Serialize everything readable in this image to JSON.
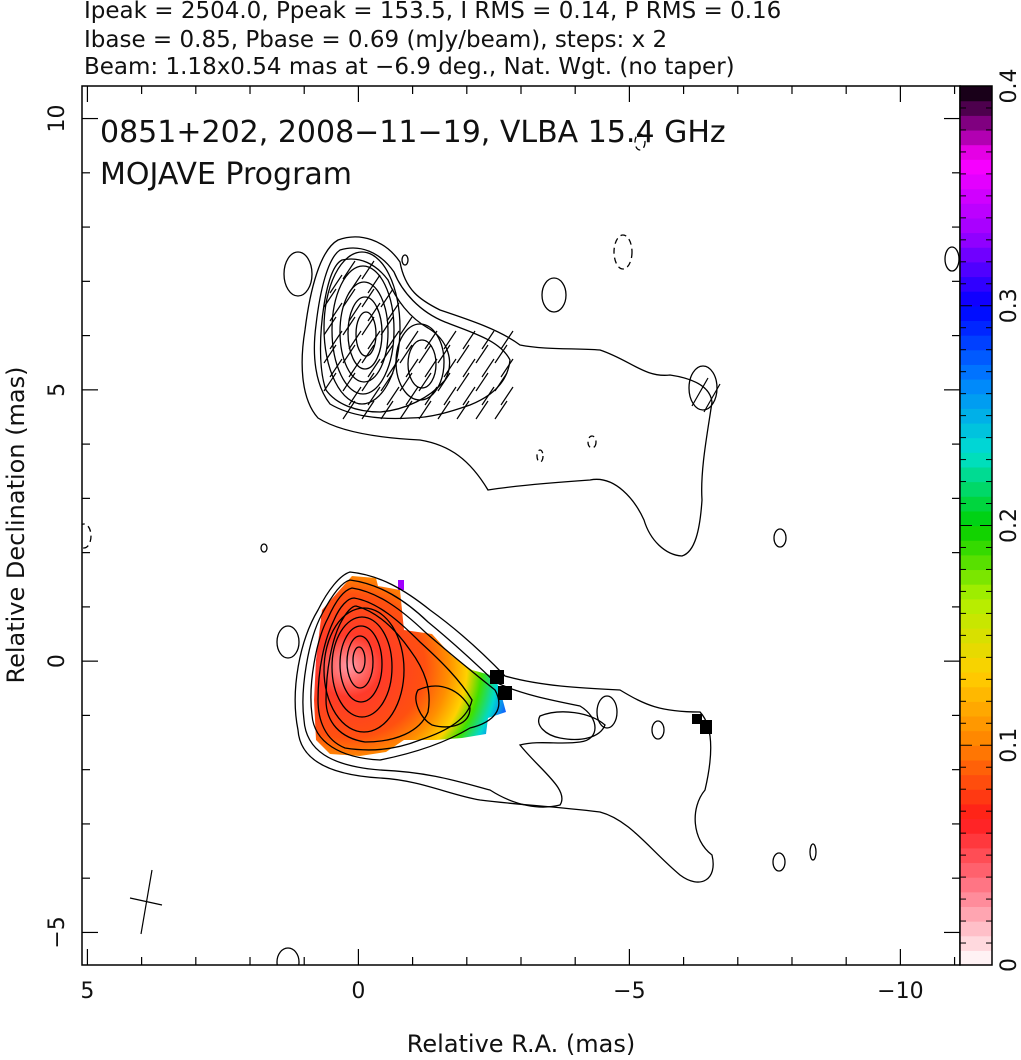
{
  "header": {
    "line1": "Ipeak = 2504.0, Ppeak = 153.5, I RMS = 0.14, P RMS = 0.16",
    "line2": "Ibase = 0.85, Pbase = 0.69 (mJy/beam), steps: x 2",
    "line3": "Beam: 1.18x0.54 mas at −6.9 deg., Nat. Wgt. (no taper)"
  },
  "chart_data": {
    "type": "heatmap",
    "title_lines": [
      "0851+202, 2008−11−19, VLBA 15.4 GHz",
      "MOJAVE Program"
    ],
    "xlabel": "Relative R.A. (mas)",
    "ylabel": "Relative Declination (mas)",
    "xlim": [
      5.1,
      -11.1
    ],
    "ylim": [
      -5.6,
      10.6
    ],
    "x_ticks": [
      5,
      0,
      -5,
      -10
    ],
    "x_tick_labels": [
      "5",
      "0",
      "−5",
      "−10"
    ],
    "y_ticks": [
      -5,
      0,
      5,
      10
    ],
    "y_tick_labels": [
      "−5",
      "0",
      "5",
      "10"
    ],
    "colorbar": {
      "range": [
        0,
        0.4
      ],
      "ticks": [
        0,
        0.1,
        0.2,
        0.3,
        0.4
      ],
      "tick_labels": [
        "0",
        "0.1",
        "0.2",
        "0.3",
        "0.4"
      ],
      "colors": [
        "#ffffff",
        "#ff7f90",
        "#ff1a1a",
        "#ff8000",
        "#ffd000",
        "#b0f000",
        "#00d000",
        "#00e0d0",
        "#0080ff",
        "#0000ff",
        "#a000ff",
        "#ff00ff",
        "#000000"
      ]
    },
    "series": [
      {
        "kind": "contours",
        "peak_mjy_per_beam": 2504.0,
        "base_mjy_per_beam": 0.85,
        "step_factor": 2
      },
      {
        "kind": "fractional_polarization",
        "peak_mjy_per_beam": 153.5,
        "base_mjy_per_beam": 0.69
      }
    ],
    "beam": {
      "major_mas": 1.18,
      "minor_mas": 0.54,
      "pa_deg": -6.9
    }
  }
}
